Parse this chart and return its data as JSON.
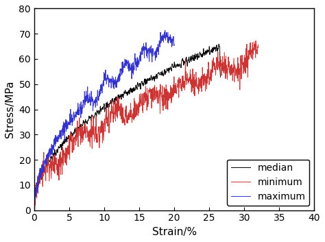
{
  "title": "",
  "xlabel": "Strain/%",
  "ylabel": "Stress/MPa",
  "xlim": [
    0,
    40
  ],
  "ylim": [
    0,
    80
  ],
  "xticks": [
    0,
    5,
    10,
    15,
    20,
    25,
    30,
    35,
    40
  ],
  "yticks": [
    0,
    10,
    20,
    30,
    40,
    50,
    60,
    70,
    80
  ],
  "legend": [
    "median",
    "minimum",
    "maximum"
  ],
  "colors": [
    "black",
    "#cc3333",
    "#3333cc"
  ],
  "background_color": "#ffffff",
  "legend_loc": "lower right"
}
